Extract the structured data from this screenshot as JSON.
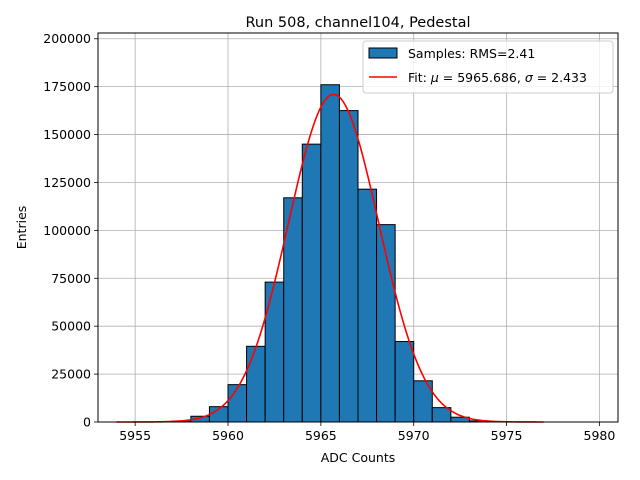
{
  "chart_data": {
    "type": "bar",
    "title": "Run 508, channel104, Pedestal",
    "xlabel": "ADC Counts",
    "ylabel": "Entries",
    "xlim": [
      5953,
      5981
    ],
    "ylim": [
      0,
      203000
    ],
    "xticks": [
      5955,
      5960,
      5965,
      5970,
      5975,
      5980
    ],
    "yticks": [
      0,
      25000,
      50000,
      75000,
      100000,
      125000,
      150000,
      175000,
      200000
    ],
    "grid": true,
    "legend_position": "top-right",
    "colors": {
      "bars": "#1f77b4",
      "bar_edge": "#000000",
      "fit": "#ff0000",
      "grid": "#b0b0b0"
    },
    "histogram": {
      "name": "Samples: RMS=2.41",
      "bins": [
        {
          "x0": 5957,
          "x1": 5958,
          "count": 500
        },
        {
          "x0": 5958,
          "x1": 5959,
          "count": 3000
        },
        {
          "x0": 5959,
          "x1": 5960,
          "count": 8000
        },
        {
          "x0": 5960,
          "x1": 5961,
          "count": 19500
        },
        {
          "x0": 5961,
          "x1": 5962,
          "count": 39500
        },
        {
          "x0": 5962,
          "x1": 5963,
          "count": 73000
        },
        {
          "x0": 5963,
          "x1": 5964,
          "count": 117000
        },
        {
          "x0": 5964,
          "x1": 5965,
          "count": 145000
        },
        {
          "x0": 5965,
          "x1": 5966,
          "count": 176000
        },
        {
          "x0": 5966,
          "x1": 5967,
          "count": 162500
        },
        {
          "x0": 5967,
          "x1": 5968,
          "count": 121500
        },
        {
          "x0": 5968,
          "x1": 5969,
          "count": 103000
        },
        {
          "x0": 5969,
          "x1": 5970,
          "count": 42000
        },
        {
          "x0": 5970,
          "x1": 5971,
          "count": 21500
        },
        {
          "x0": 5971,
          "x1": 5972,
          "count": 7500
        },
        {
          "x0": 5972,
          "x1": 5973,
          "count": 2500
        },
        {
          "x0": 5973,
          "x1": 5974,
          "count": 600
        }
      ]
    },
    "fit": {
      "name_prefix": "Fit: ",
      "mu_symbol": "μ",
      "sigma_symbol": "σ",
      "mu_text": " = 5965.686, ",
      "sigma_text": " = 2.433",
      "mu": 5965.686,
      "sigma": 2.433,
      "amplitude": 171000,
      "x_range": [
        5954,
        5977
      ]
    }
  }
}
